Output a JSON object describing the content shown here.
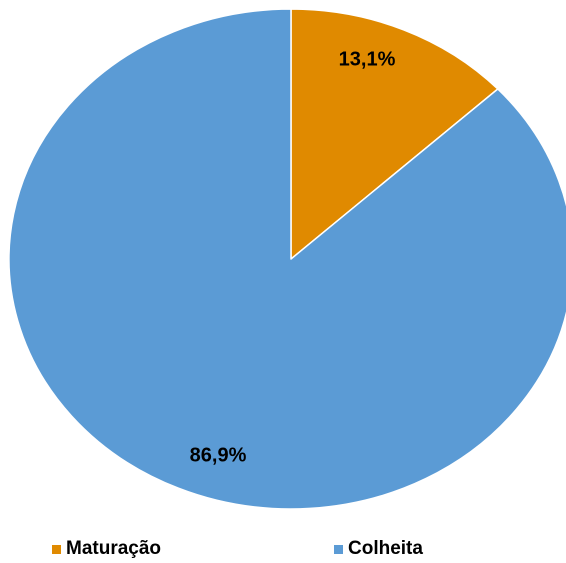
{
  "chart_data": {
    "type": "pie",
    "slices": [
      {
        "name": "Maturação",
        "value": 13.1,
        "label": "13,1%",
        "color": "#E08A00"
      },
      {
        "name": "Colheita",
        "value": 86.9,
        "label": "86,9%",
        "color": "#5B9BD5"
      }
    ],
    "start_angle": "12 o'clock",
    "direction": "clockwise",
    "legend_position": "bottom",
    "title": ""
  }
}
